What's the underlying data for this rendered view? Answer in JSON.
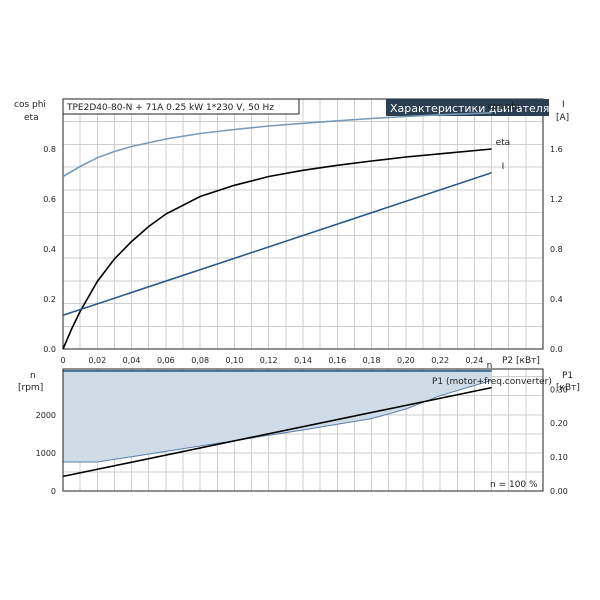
{
  "header": {
    "subtitle": "TPE2D40-80-N + 71A   0.25 kW   1*230 V, 50 Hz",
    "title": "Характеристики двигателя",
    "title_bg": "#2b3e52"
  },
  "chart_data": [
    {
      "type": "line",
      "title": "Характеристики двигателя",
      "subtitle": "TPE2D40-80-N + 71A   0.25 kW   1*230 V, 50 Hz",
      "xlabel": "P2 [кВт]",
      "ylabel_left": [
        "cos phi",
        "eta"
      ],
      "ylabel_right": [
        "I",
        "[A]"
      ],
      "xlim": [
        0,
        0.28
      ],
      "ylim_left": [
        0,
        1
      ],
      "ylim_right": [
        0,
        2
      ],
      "xticks": [
        "0",
        "0,02",
        "0,04",
        "0,06",
        "0,08",
        "0,10",
        "0,12",
        "0,14",
        "0,16",
        "0,18",
        "0,20",
        "0,22",
        "0,24"
      ],
      "yticks_left": [
        "0.0",
        "0.2",
        "0.4",
        "0.6",
        "0.8"
      ],
      "yticks_right": [
        "0.0",
        "0.4",
        "0.8",
        "1.2",
        "1.6"
      ],
      "grid": true,
      "series": [
        {
          "name": "cos phi",
          "axis": "left",
          "color": "#7a9ab8",
          "x": [
            0,
            0.01,
            0.02,
            0.03,
            0.04,
            0.06,
            0.08,
            0.1,
            0.12,
            0.14,
            0.16,
            0.18,
            0.2,
            0.22,
            0.25
          ],
          "y": [
            0.69,
            0.73,
            0.765,
            0.79,
            0.81,
            0.84,
            0.862,
            0.878,
            0.892,
            0.903,
            0.913,
            0.922,
            0.93,
            0.937,
            0.945
          ]
        },
        {
          "name": "eta",
          "axis": "left",
          "color": "#000000",
          "x": [
            0,
            0.005,
            0.01,
            0.02,
            0.03,
            0.04,
            0.05,
            0.06,
            0.08,
            0.1,
            0.12,
            0.14,
            0.16,
            0.18,
            0.2,
            0.22,
            0.25
          ],
          "y": [
            0,
            0.08,
            0.15,
            0.27,
            0.36,
            0.43,
            0.49,
            0.54,
            0.61,
            0.655,
            0.69,
            0.715,
            0.735,
            0.752,
            0.768,
            0.781,
            0.8
          ]
        },
        {
          "name": "I",
          "axis": "right",
          "color": "#2a5a8a",
          "x": [
            0,
            0.25
          ],
          "y": [
            0.27,
            1.41
          ]
        }
      ]
    },
    {
      "type": "area",
      "xlabel": "",
      "ylabel_left": [
        "n",
        "[rpm]"
      ],
      "ylabel_right": [
        "P1",
        "[кВт]"
      ],
      "xlim": [
        0,
        0.28
      ],
      "ylim_left": [
        0,
        3200
      ],
      "ylim_right": [
        0,
        0.36
      ],
      "yticks_left": [
        "0",
        "1000",
        "2000"
      ],
      "yticks_right": [
        "0.00",
        "0.10",
        "0.20",
        "0.30"
      ],
      "annotation": "n = 100 %",
      "grid": true,
      "series": [
        {
          "name": "n",
          "axis": "left",
          "color": "#2a5a8a",
          "fill": "#cfdbe6",
          "x": [
            0,
            0.25
          ],
          "y": [
            3150,
            3150
          ]
        },
        {
          "name": "",
          "axis": "left",
          "color": "#5a7fa6",
          "x": [
            0,
            0.02,
            0.04,
            0.06,
            0.08,
            0.1,
            0.12,
            0.14,
            0.16,
            0.18,
            0.2,
            0.22,
            0.25
          ],
          "y": [
            760,
            760,
            900,
            1040,
            1180,
            1320,
            1460,
            1600,
            1750,
            1900,
            2150,
            2500,
            2900
          ]
        },
        {
          "name": "P1 (motor+freq.converter)",
          "axis": "right",
          "color": "#000000",
          "x": [
            0,
            0.25
          ],
          "y": [
            0.043,
            0.305
          ]
        }
      ]
    }
  ]
}
